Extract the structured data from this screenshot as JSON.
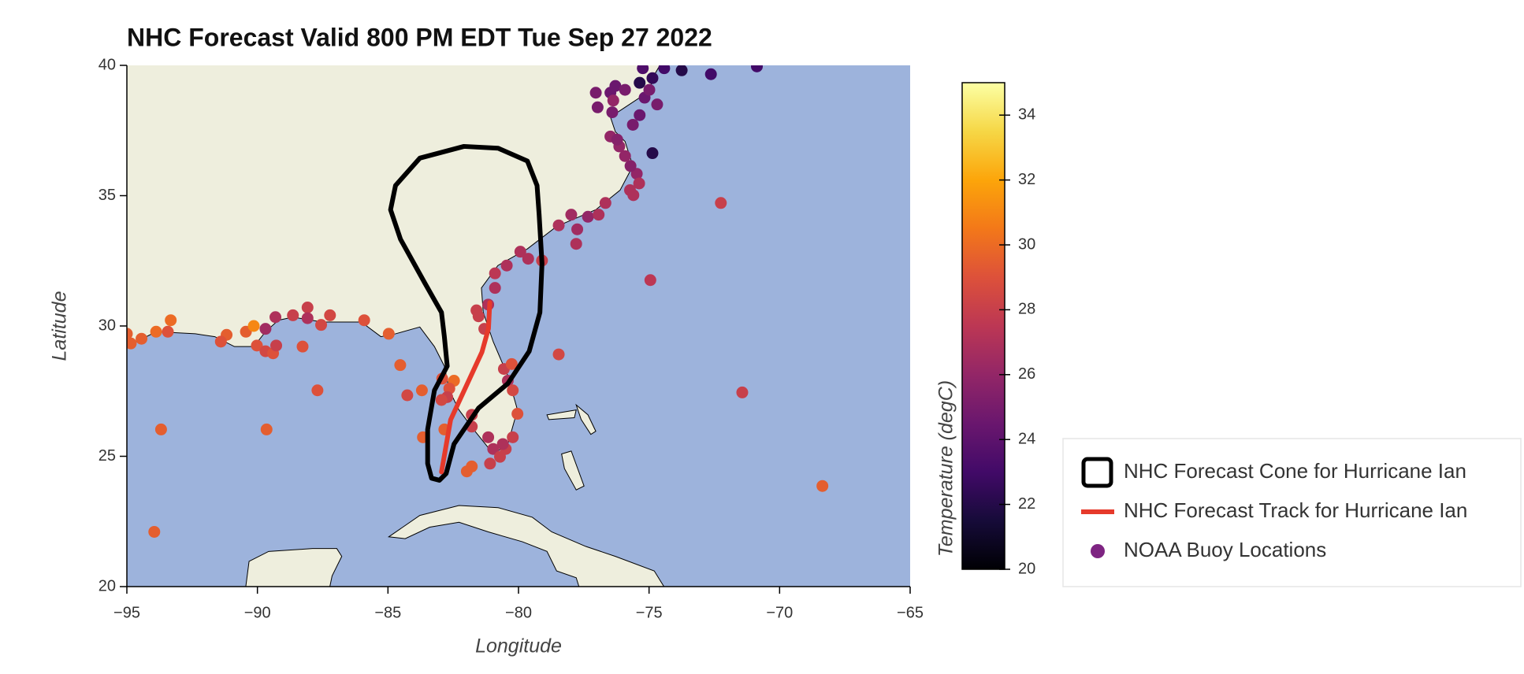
{
  "chart_data": {
    "type": "scatter",
    "title": "NHC Forecast Valid 800 PM EDT Tue Sep 27 2022",
    "x_label": "Longitude",
    "y_label": "Latitude",
    "xlim": [
      -95,
      -65
    ],
    "ylim": [
      20,
      40
    ],
    "xticks": [
      {
        "value": -95,
        "label": "−95"
      },
      {
        "value": -90,
        "label": "−90"
      },
      {
        "value": -85,
        "label": "−85"
      },
      {
        "value": -80,
        "label": "−80"
      },
      {
        "value": -75,
        "label": "−75"
      },
      {
        "value": -70,
        "label": "−70"
      },
      {
        "value": -65,
        "label": "−65"
      }
    ],
    "yticks": [
      20,
      25,
      30,
      35,
      40
    ],
    "ocean_color": "#9db3dc",
    "land_color": "#eeeedd",
    "legend": "outside right",
    "colorbar": {
      "label": "Temperature (degC)",
      "colormap": "inferno",
      "lim": [
        20,
        35
      ],
      "ticks": [
        20,
        22,
        24,
        26,
        28,
        30,
        32,
        34
      ]
    },
    "series": [
      {
        "name": "NHC Forecast Cone for Hurricane Ian",
        "type": "polygon",
        "color": "#000000",
        "x": [
          -83.33,
          -83.03,
          -82.77,
          -82.47,
          -81.53,
          -80.41,
          -79.59,
          -79.18,
          -79.1,
          -79.21,
          -79.29,
          -79.66,
          -80.78,
          -82.09,
          -83.78,
          -84.71,
          -84.9,
          -84.52,
          -83.59,
          -82.95,
          -82.84,
          -82.73,
          -83.22,
          -83.48,
          -83.48
        ],
        "y": [
          24.16,
          24.08,
          24.34,
          25.47,
          26.85,
          27.79,
          29.03,
          30.52,
          32.4,
          34.27,
          35.39,
          36.33,
          36.82,
          36.89,
          36.44,
          35.39,
          34.46,
          33.33,
          31.65,
          30.52,
          29.59,
          28.46,
          27.53,
          26.03,
          24.72
        ]
      },
      {
        "name": "NHC Forecast Track for Hurricane Ian",
        "type": "line",
        "color": "#e63a2b",
        "x": [
          -82.95,
          -82.6,
          -82.0,
          -81.4,
          -81.15,
          -81.1
        ],
        "y": [
          24.4,
          26.4,
          27.7,
          29.0,
          29.9,
          30.9
        ]
      },
      {
        "name": "NOAA Buoy Locations",
        "type": "scatter",
        "color": "#7e2482",
        "x": [
          -95,
          -94.85,
          -94.44,
          -93.88,
          -93.32,
          -93.43,
          -93.69,
          -93.95,
          -91.18,
          -91.4,
          -90.44,
          -90.14,
          -90.02,
          -89.69,
          -89.4,
          -89.28,
          -89.69,
          -89.31,
          -88.64,
          -88.08,
          -88.08,
          -87.56,
          -87.22,
          -88.27,
          -87.7,
          -89.65,
          -85.91,
          -84.97,
          -84.53,
          -84.26,
          -83.7,
          -83.66,
          -82.84,
          -81.98,
          -81.79,
          -82.92,
          -82.47,
          -82.65,
          -82.73,
          -82.95,
          -81.79,
          -81.79,
          -81.61,
          -81.53,
          -81.31,
          -81.16,
          -80.9,
          -80.9,
          -80.45,
          -79.93,
          -79.63,
          -79.1,
          -80.56,
          -80.26,
          -80.41,
          -80.22,
          -80.04,
          -81.16,
          -80.97,
          -80.71,
          -80.49,
          -80.22,
          -81.09,
          -80.6,
          -78.46,
          -74.95,
          -72.25,
          -71.43,
          -68.36,
          -78.46,
          -77.98,
          -77.75,
          -77.79,
          -77.34,
          -76.93,
          -76.67,
          -75.73,
          -75.47,
          -75.71,
          -75.38,
          -75.6,
          -75.92,
          -76.14,
          -76.48,
          -76.22,
          -77.04,
          -76.97,
          -76.48,
          -76.37,
          -76.41,
          -76.29,
          -75.92,
          -75.62,
          -75.36,
          -75.17,
          -74.99,
          -74.69,
          -75.36,
          -74.87,
          -75.24,
          -74.42,
          -73.75,
          -72.63,
          -70.87,
          -74.87
        ],
        "y": [
          29.7,
          29.33,
          29.51,
          29.78,
          30.22,
          29.78,
          26.03,
          22.1,
          29.66,
          29.4,
          29.78,
          30.0,
          29.25,
          29.03,
          28.95,
          29.25,
          29.89,
          30.34,
          30.41,
          30.71,
          30.3,
          30.04,
          30.41,
          29.21,
          27.53,
          26.03,
          30.22,
          29.7,
          28.5,
          27.34,
          27.53,
          25.73,
          26.03,
          24.42,
          24.61,
          27.98,
          27.9,
          27.6,
          27.27,
          27.16,
          26.59,
          26.14,
          30.6,
          30.37,
          29.89,
          30.82,
          31.46,
          32.02,
          32.32,
          32.85,
          32.58,
          32.51,
          28.35,
          28.54,
          27.9,
          27.53,
          26.63,
          25.73,
          25.28,
          24.98,
          25.28,
          25.73,
          24.72,
          25.47,
          28.91,
          31.76,
          34.72,
          27.45,
          23.86,
          33.86,
          34.27,
          33.71,
          33.15,
          34.19,
          34.27,
          34.72,
          35.21,
          35.84,
          36.14,
          35.47,
          35.02,
          36.52,
          36.89,
          37.27,
          37.15,
          38.95,
          38.39,
          38.95,
          38.65,
          38.2,
          39.21,
          39.06,
          37.72,
          38.09,
          38.76,
          39.06,
          38.5,
          39.33,
          39.51,
          39.89,
          39.89,
          39.81,
          39.66,
          39.96,
          36.63
        ],
        "values": [
          29.5,
          29.5,
          29.5,
          30,
          30,
          29,
          29.5,
          29.5,
          29.5,
          29,
          29.5,
          31,
          29,
          28.5,
          29,
          28,
          26.5,
          27,
          28,
          28,
          27,
          28.5,
          28.5,
          29,
          29,
          29.5,
          29,
          29.5,
          29.5,
          28.5,
          29.5,
          29.5,
          29.5,
          29.5,
          29.5,
          29,
          30,
          29,
          28,
          28.5,
          28,
          28,
          28,
          28,
          28,
          27,
          27,
          27.5,
          27,
          27,
          27,
          28,
          28,
          29,
          27,
          28.5,
          29,
          27,
          27,
          28,
          28,
          28,
          28,
          27,
          28.5,
          27.5,
          28,
          28,
          29.5,
          27,
          26.5,
          26.5,
          27,
          26,
          27,
          27,
          27,
          26,
          25.5,
          27,
          27,
          26,
          26,
          26,
          25.5,
          25,
          25,
          24.5,
          26,
          25,
          24.5,
          25,
          25,
          24.5,
          24.5,
          25,
          25,
          22,
          22.5,
          23.5,
          23,
          22,
          23,
          23,
          22
        ]
      }
    ]
  }
}
